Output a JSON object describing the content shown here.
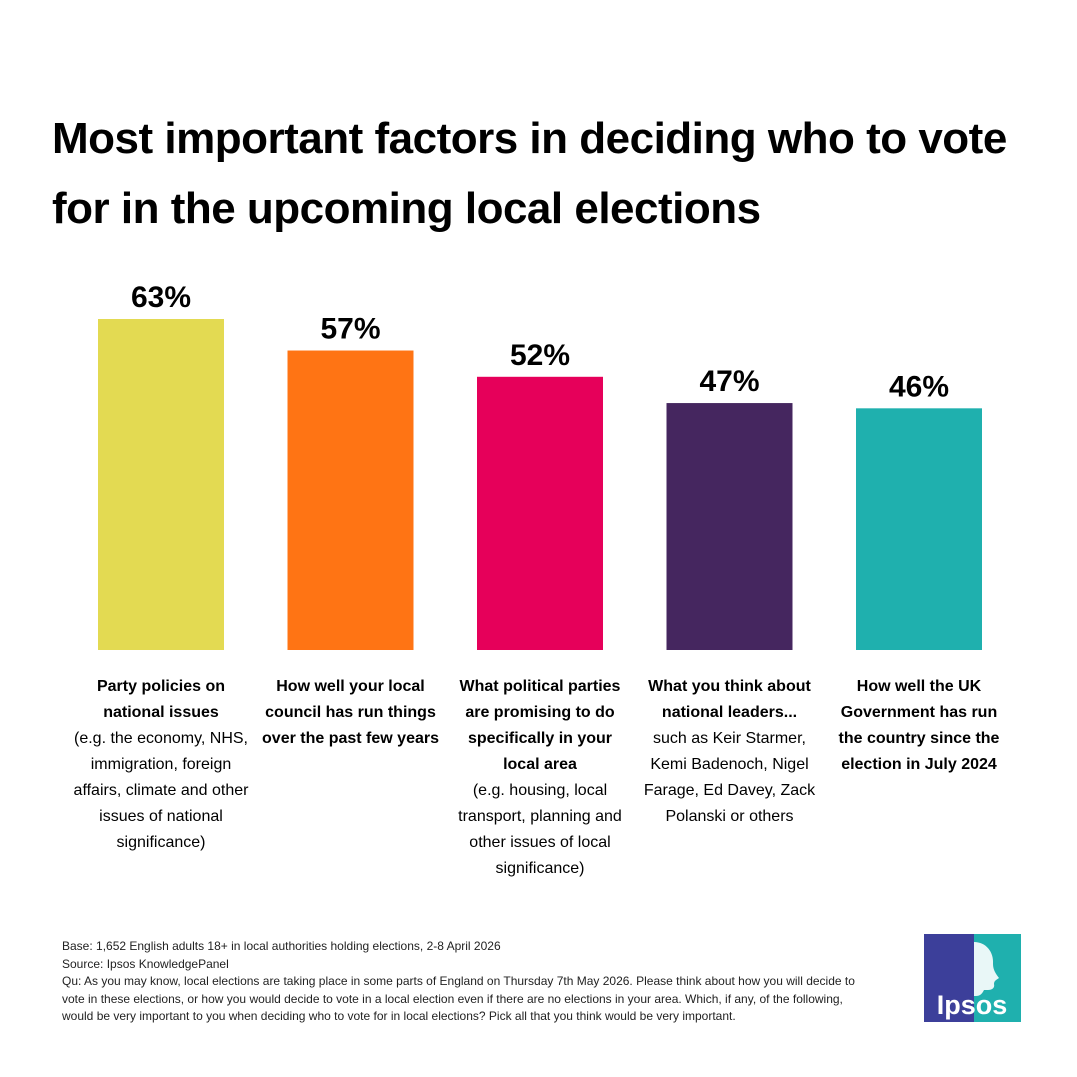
{
  "title": "Most important factors in deciding who to vote for in the upcoming local elections",
  "chart_data": {
    "type": "bar",
    "ylim": [
      0,
      63
    ],
    "categories": [
      {
        "bold": "Party policies on national issues",
        "detail": "(e.g. the economy, NHS, immigration, foreign affairs, climate and other issues of national significance)"
      },
      {
        "bold": "How well your local council has run things over the past few years",
        "detail": ""
      },
      {
        "bold": "What political parties are promising to do specifically in your local area",
        "detail": "(e.g. housing, local transport, planning and other issues of local significance)"
      },
      {
        "bold": "What you think about national leaders...",
        "detail": "such as Keir Starmer, Kemi Badenoch, Nigel Farage, Ed Davey, Zack Polanski or others"
      },
      {
        "bold": "How well the UK Government has run the country since the election in July 2024",
        "detail": ""
      }
    ],
    "values": [
      63,
      57,
      52,
      47,
      46
    ],
    "value_labels": [
      "63%",
      "57%",
      "52%",
      "47%",
      "46%"
    ],
    "colors": [
      "#e3da52",
      "#ff7414",
      "#e6005a",
      "#45265f",
      "#1fb0ae"
    ]
  },
  "footnotes": {
    "base": "Base: 1,652 English adults 18+ in local authorities holding elections, 2-8 April 2026",
    "source": "Source: Ipsos KnowledgePanel",
    "question": "Qu: As you may know, local elections are taking place  in some parts of England on Thursday 7th May 2026. Please think about how you will decide to vote in these elections, or how you would decide to vote in a local election even if there are no elections in your area. Which, if any, of the following, would be very important to you when deciding who to vote for in local elections?  Pick all that you think would be very important."
  },
  "logo": {
    "text": "Ipsos",
    "color_left": "#3c3f9a",
    "color_right": "#1fb0ae"
  }
}
